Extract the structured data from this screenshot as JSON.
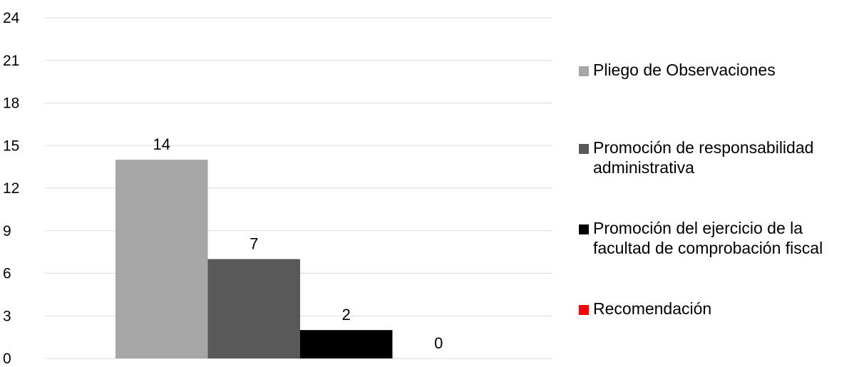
{
  "chart_data": {
    "type": "bar",
    "categories": [
      ""
    ],
    "series": [
      {
        "name": "Pliego de Observaciones",
        "values": [
          14
        ],
        "color": "#a6a6a6"
      },
      {
        "name": "Promoción de responsabilidad administrativa",
        "values": [
          7
        ],
        "color": "#595959"
      },
      {
        "name": "Promoción del ejercicio de la facultad de comprobación fiscal",
        "values": [
          2
        ],
        "color": "#000000"
      },
      {
        "name": "Recomendación",
        "values": [
          0
        ],
        "color": "#ff0000"
      }
    ],
    "yticks": [
      "0",
      "3",
      "6",
      "9",
      "12",
      "15",
      "18",
      "21",
      "24"
    ],
    "ylim": [
      0,
      24
    ],
    "grid": true,
    "legend_position": "right",
    "title": "",
    "xlabel": "",
    "ylabel": ""
  }
}
